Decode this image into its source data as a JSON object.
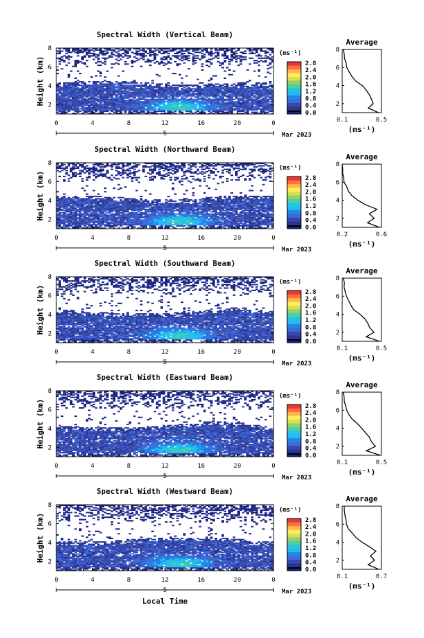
{
  "common": {
    "xlabel": "Local Time",
    "ylabel": "Height (km)",
    "date_day": "5",
    "date_label": "Mar 2023",
    "x_ticks": [
      "0",
      "4",
      "8",
      "12",
      "16",
      "20",
      "0"
    ],
    "y_ticks": [
      "2",
      "4",
      "6",
      "8"
    ],
    "colorbar_unit": "(ms⁻¹)",
    "colorbar_ticks": [
      "0.0",
      "0.4",
      "0.8",
      "1.2",
      "1.6",
      "2.0",
      "2.4",
      "2.8"
    ],
    "colorbar_colors": [
      "#1a237e",
      "#283593",
      "#3949ab",
      "#3f6ad8",
      "#1e88e5",
      "#29b6f6",
      "#26c6da",
      "#4dd0a8",
      "#9ccc65",
      "#d4e157",
      "#ffee58",
      "#ffb74d",
      "#ff7043",
      "#e53935"
    ],
    "avg_title": "Average",
    "avg_xlabel": "(ms⁻¹)"
  },
  "chart_data": [
    {
      "type": "heatmap",
      "title": "Spectral Width (Vertical Beam)",
      "xlabel": "Local Time",
      "ylabel": "Height (km)",
      "xlim": [
        0,
        24
      ],
      "ylim": [
        1,
        8
      ],
      "colorbar_range": [
        0.0,
        2.8
      ],
      "profile": {
        "title": "Average",
        "xlim": [
          0.1,
          0.5
        ],
        "x_ticks": [
          "0.1",
          "0.5"
        ],
        "heights": [
          1.0,
          1.5,
          2.0,
          2.5,
          3.0,
          3.5,
          4.0,
          4.5,
          5.0,
          5.5,
          6.0,
          6.5,
          7.0,
          7.5,
          8.0
        ],
        "values": [
          0.47,
          0.36,
          0.42,
          0.4,
          0.38,
          0.34,
          0.3,
          0.24,
          0.2,
          0.17,
          0.15,
          0.14,
          0.13,
          0.12,
          0.11
        ]
      }
    },
    {
      "type": "heatmap",
      "title": "Spectral Width (Northward Beam)",
      "xlabel": "Local Time",
      "ylabel": "Height (km)",
      "xlim": [
        0,
        24
      ],
      "ylim": [
        1,
        8
      ],
      "colorbar_range": [
        0.0,
        2.8
      ],
      "profile": {
        "title": "Average",
        "xlim": [
          0.2,
          0.6
        ],
        "x_ticks": [
          "0.2",
          "0.6"
        ],
        "heights": [
          1.0,
          1.5,
          2.0,
          2.5,
          3.0,
          3.5,
          4.0,
          4.5,
          5.0,
          5.5,
          6.0,
          6.5,
          7.0,
          7.5,
          8.0
        ],
        "values": [
          0.58,
          0.46,
          0.52,
          0.48,
          0.55,
          0.44,
          0.36,
          0.3,
          0.26,
          0.24,
          0.22,
          0.21,
          0.21,
          0.2,
          0.2
        ]
      }
    },
    {
      "type": "heatmap",
      "title": "Spectral Width (Southward Beam)",
      "xlabel": "Local Time",
      "ylabel": "Height (km)",
      "xlim": [
        0,
        24
      ],
      "ylim": [
        1,
        8
      ],
      "colorbar_range": [
        0.0,
        2.8
      ],
      "profile": {
        "title": "Average",
        "xlim": [
          0.1,
          0.5
        ],
        "x_ticks": [
          "0.1",
          "0.5"
        ],
        "heights": [
          1.0,
          1.5,
          2.0,
          2.5,
          3.0,
          3.5,
          4.0,
          4.5,
          5.0,
          5.5,
          6.0,
          6.5,
          7.0,
          7.5,
          8.0
        ],
        "values": [
          0.48,
          0.34,
          0.42,
          0.38,
          0.36,
          0.33,
          0.28,
          0.22,
          0.19,
          0.16,
          0.14,
          0.13,
          0.12,
          0.12,
          0.11
        ]
      }
    },
    {
      "type": "heatmap",
      "title": "Spectral Width (Eastward Beam)",
      "xlabel": "Local Time",
      "ylabel": "Height (km)",
      "xlim": [
        0,
        24
      ],
      "ylim": [
        1,
        8
      ],
      "colorbar_range": [
        0.0,
        2.8
      ],
      "profile": {
        "title": "Average",
        "xlim": [
          0.1,
          0.5
        ],
        "x_ticks": [
          "0.1",
          "0.5"
        ],
        "heights": [
          1.0,
          1.5,
          2.0,
          2.5,
          3.0,
          3.5,
          4.0,
          4.5,
          5.0,
          5.5,
          6.0,
          6.5,
          7.0,
          7.5,
          8.0
        ],
        "values": [
          0.49,
          0.35,
          0.44,
          0.4,
          0.38,
          0.34,
          0.3,
          0.25,
          0.2,
          0.17,
          0.15,
          0.13,
          0.12,
          0.12,
          0.11
        ]
      }
    },
    {
      "type": "heatmap",
      "title": "Spectral Width (Westward Beam)",
      "xlabel": "Local Time",
      "ylabel": "Height (km)",
      "xlim": [
        0,
        24
      ],
      "ylim": [
        1,
        8
      ],
      "colorbar_range": [
        0.0,
        2.8
      ],
      "profile": {
        "title": "Average",
        "xlim": [
          0.1,
          0.7
        ],
        "x_ticks": [
          "0.1",
          "0.7"
        ],
        "heights": [
          1.0,
          1.5,
          2.0,
          2.5,
          3.0,
          3.5,
          4.0,
          4.5,
          5.0,
          5.5,
          6.0,
          6.5,
          7.0,
          7.5,
          8.0
        ],
        "values": [
          0.66,
          0.5,
          0.6,
          0.54,
          0.62,
          0.52,
          0.4,
          0.32,
          0.25,
          0.2,
          0.17,
          0.15,
          0.14,
          0.13,
          0.13
        ]
      }
    }
  ]
}
